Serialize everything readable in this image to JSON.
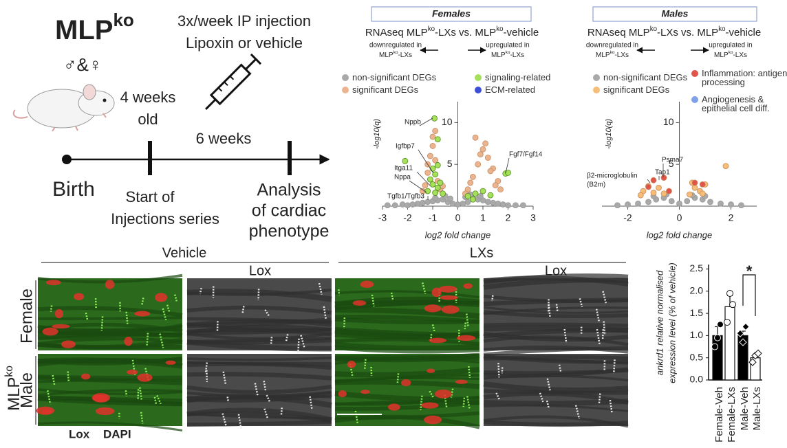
{
  "figure": {
    "mlp": [
      "MLP",
      "ko"
    ],
    "sexes": "♂&♀",
    "injection": [
      "3x/week IP injection",
      "Lipoxin or vehicle"
    ],
    "age": [
      "4 weeks",
      "old"
    ],
    "duration": "6 weeks",
    "birth": "Birth",
    "start": [
      "Start of",
      "Injections series"
    ],
    "analysis": [
      "Analysis",
      "of cardiac",
      "phenotype"
    ]
  },
  "chart_data": [
    {
      "type": "scatter",
      "panel_title": "Females",
      "title": [
        "RNAseq MLP",
        "ko",
        "-LXs vs. MLP",
        "ko",
        "-vehicle"
      ],
      "direction_down": {
        "line": "downregulated in",
        "parts": [
          "MLP",
          "ko",
          "-LXs"
        ]
      },
      "direction_up": {
        "line": "upregulated in",
        "parts": [
          "MLP",
          "ko",
          "-LXs"
        ]
      },
      "x_label": "log2 fold change",
      "y_label": "-log10(q)",
      "xlim": [
        -3,
        3
      ],
      "xticks": [
        -3,
        -2,
        -1,
        0,
        1,
        2,
        3
      ],
      "ylim": [
        0,
        12.5
      ],
      "yticks": [
        5,
        10
      ],
      "annotations": [
        "Nppb",
        "Igfbp7",
        "Itga11",
        "Nppa",
        "Tgfb1/Tgfb3",
        "Fgf7/Fgf14"
      ],
      "series": [
        {
          "name": "non-significant DEGs",
          "color": "#a9a9a9",
          "x": [
            -2.8,
            -2.5,
            -2.2,
            -2.0,
            -1.8,
            -1.6,
            -1.4,
            -1.2,
            -1.0,
            -0.8,
            -0.6,
            -0.4,
            -0.2,
            0,
            0.2,
            0.4,
            0.6,
            0.8,
            1.0,
            1.2,
            1.4,
            1.6,
            1.8,
            2.0,
            2.3,
            2.6,
            -0.5,
            -0.3,
            0.3,
            0.5,
            -0.9,
            0.9
          ],
          "values": [
            0.1,
            0.1,
            0.2,
            0.1,
            0.2,
            0.3,
            0.4,
            0.5,
            0.6,
            0.7,
            0.8,
            0.5,
            0.3,
            0.2,
            0.3,
            0.5,
            0.9,
            0.8,
            0.7,
            0.5,
            0.4,
            0.3,
            0.2,
            0.1,
            0.1,
            0.1,
            1.2,
            0.9,
            1.1,
            1.4,
            1.0,
            1.2
          ]
        },
        {
          "name": "significant DEGs",
          "color": "#e9b48f",
          "x": [
            -1.3,
            -1.2,
            -1.1,
            -1.0,
            -0.9,
            -0.8,
            -0.7,
            -1.4,
            -1.0,
            -0.9,
            -1.2,
            -0.6,
            0.4,
            0.6,
            0.8,
            1.0,
            1.2,
            1.4,
            1.6,
            0.7,
            0.9,
            1.1,
            1.5,
            0.5,
            1.3,
            1.7,
            0.3
          ],
          "values": [
            2.5,
            4.0,
            6.0,
            7.2,
            5.5,
            3.0,
            2.0,
            1.8,
            8.3,
            9.0,
            5.0,
            2.4,
            2.0,
            3.5,
            5.0,
            6.8,
            5.8,
            4.5,
            3.0,
            8.2,
            6.2,
            7.5,
            2.5,
            2.8,
            4.2,
            2.0,
            1.5
          ]
        },
        {
          "name": "signaling-related",
          "color": "#a6e05a",
          "x": [
            -0.93,
            -2.1,
            -1.0,
            -0.9,
            -1.1,
            -0.7,
            -0.8,
            -1.2,
            -0.9,
            -0.6,
            -1.0,
            -0.8,
            0.4,
            0.7,
            1.0,
            1.3,
            1.9,
            2.0,
            -0.8,
            0.6
          ],
          "values": [
            10.5,
            5.4,
            4.5,
            3.8,
            3.2,
            2.8,
            2.2,
            1.8,
            1.6,
            1.5,
            2.6,
            4.9,
            1.2,
            1.5,
            1.8,
            1.3,
            3.9,
            4.0,
            8.0,
            0.8
          ]
        },
        {
          "name": "ECM-related",
          "color": "#3a4ed8",
          "x": [],
          "values": []
        }
      ]
    },
    {
      "type": "scatter",
      "panel_title": "Males",
      "title": [
        "RNAseq MLP",
        "ko",
        "-LXs vs. MLP",
        "ko",
        "-vehicle"
      ],
      "direction_down": {
        "line": "downregulated in",
        "parts": [
          "MLP",
          "ko",
          "-LXs"
        ]
      },
      "direction_up": {
        "line": "upregulated in",
        "parts": [
          "MLP",
          "ko",
          "-LXs"
        ]
      },
      "x_label": "log2 fold change",
      "y_label": "-log10(q)",
      "xlim": [
        -3,
        3
      ],
      "xticks": [
        -2,
        0,
        2
      ],
      "ylim": [
        0,
        12.5
      ],
      "yticks": [
        5,
        10
      ],
      "annotations": [
        "Psma7",
        "Tap1",
        "β2-microglobulin",
        "(B2m)"
      ],
      "series": [
        {
          "name": "non-significant DEGs",
          "color": "#a9a9a9",
          "x": [
            -2.4,
            -2.0,
            -1.6,
            -1.2,
            -0.9,
            -0.6,
            -0.3,
            0,
            0.3,
            0.6,
            0.9,
            1.2,
            1.6,
            2.0,
            2.4,
            -0.5,
            0.5,
            -1.0,
            1.0
          ],
          "values": [
            0.1,
            0.2,
            0.3,
            0.5,
            0.8,
            1.0,
            0.6,
            0.3,
            0.6,
            1.0,
            0.8,
            0.5,
            0.3,
            0.2,
            0.1,
            1.4,
            1.3,
            1.2,
            1.2
          ]
        },
        {
          "name": "significant DEGs",
          "color": "#f6bd78",
          "x": [
            -1.4,
            -1.2,
            -1.0,
            -0.8,
            -1.5,
            -0.6,
            0.4,
            0.6,
            0.8,
            1.0,
            0.5,
            0.9,
            1.8
          ],
          "values": [
            1.8,
            2.4,
            1.6,
            2.2,
            1.3,
            1.5,
            1.4,
            2.2,
            1.8,
            2.6,
            2.8,
            1.5,
            4.8
          ]
        },
        {
          "name": "Inflammation: antigen-processing",
          "color": "#e0544a",
          "x": [
            -1.0,
            -0.6,
            -1.2,
            0.6,
            0.9,
            -0.4
          ],
          "values": [
            3.1,
            3.4,
            2.3,
            2.8,
            2.6,
            1.8
          ]
        },
        {
          "name": "Angiogenesis & epithelial cell diff.",
          "color": "#7fa0ea",
          "x": [],
          "values": []
        }
      ]
    },
    {
      "type": "bar",
      "y_label": [
        "ankrd1 relative normalised",
        "expression level (% of vehicle)"
      ],
      "categories": [
        "Female-Veh",
        "Female-LXs",
        "Male-Veh",
        "Male-LXs"
      ],
      "values": [
        1.0,
        1.65,
        1.0,
        0.5
      ],
      "errors": [
        0.2,
        0.25,
        0.1,
        0.08
      ],
      "colors": [
        "#000000",
        "#ffffff",
        "#000000",
        "#ffffff"
      ],
      "points": [
        [
          0.75,
          0.95,
          1.25
        ],
        [
          1.3,
          1.95,
          1.7
        ],
        [
          1.05,
          0.85,
          1.2
        ],
        [
          0.4,
          0.55,
          0.6
        ]
      ],
      "ylim": [
        0,
        2.6
      ],
      "yticks": [
        {
          "value": 0,
          "label": "0.0"
        },
        0.5,
        {
          "value": 1,
          "label": "1.0"
        },
        1.5,
        {
          "value": 2,
          "label": "2.0"
        },
        2.5
      ],
      "significance": "*"
    }
  ],
  "micro": {
    "vehicle": "Vehicle",
    "lxs": "LXs",
    "lox_columns": [
      "Lox",
      "Lox"
    ],
    "row_group": [
      "MLP",
      "ko"
    ],
    "rows": [
      "Female",
      "Male"
    ],
    "stain": [
      "Lox",
      "DAPI"
    ]
  }
}
